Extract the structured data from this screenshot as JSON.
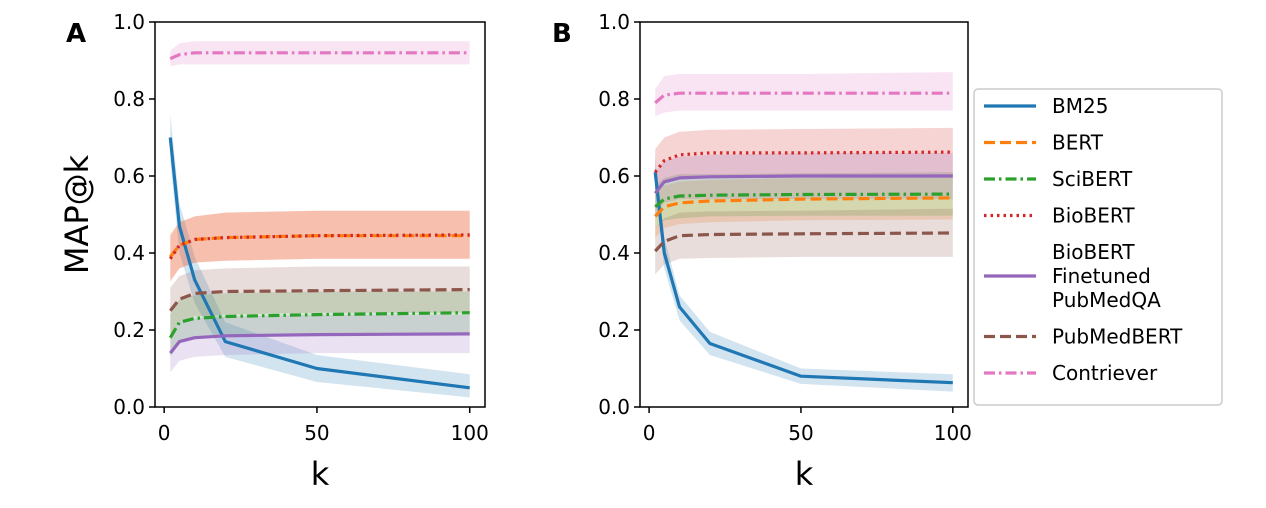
{
  "chart_data": [
    {
      "panel": "A",
      "type": "line",
      "title": "",
      "xlabel": "k",
      "ylabel": "MAP@k",
      "xlim": [
        -3,
        105
      ],
      "ylim": [
        0.0,
        1.0
      ],
      "x": [
        2,
        5,
        10,
        20,
        50,
        100
      ],
      "xticks": [
        "0",
        "50",
        "100"
      ],
      "yticks": [
        "0.0",
        "0.2",
        "0.4",
        "0.6",
        "0.8",
        "1.0"
      ],
      "series": [
        {
          "name": "BM25",
          "style": "solid",
          "color": "#1f77b4",
          "values": [
            0.7,
            0.47,
            0.33,
            0.17,
            0.1,
            0.05
          ],
          "lower": [
            0.64,
            0.4,
            0.27,
            0.13,
            0.065,
            0.025
          ],
          "upper": [
            0.76,
            0.53,
            0.39,
            0.22,
            0.135,
            0.085
          ]
        },
        {
          "name": "BERT",
          "style": "dashed",
          "color": "#ff7f0e",
          "values": [
            0.39,
            0.42,
            0.435,
            0.44,
            0.445,
            0.445
          ],
          "lower": [
            0.33,
            0.36,
            0.375,
            0.38,
            0.385,
            0.385
          ],
          "upper": [
            0.45,
            0.48,
            0.495,
            0.505,
            0.51,
            0.51
          ]
        },
        {
          "name": "SciBERT",
          "style": "dashdot",
          "color": "#2ca02c",
          "values": [
            0.18,
            0.22,
            0.23,
            0.235,
            0.24,
            0.245
          ],
          "lower": [
            0.13,
            0.17,
            0.18,
            0.185,
            0.19,
            0.19
          ],
          "upper": [
            0.24,
            0.28,
            0.29,
            0.295,
            0.3,
            0.3
          ]
        },
        {
          "name": "BioBERT",
          "style": "dotted",
          "color": "#d62728",
          "values": [
            0.385,
            0.42,
            0.435,
            0.44,
            0.445,
            0.447
          ],
          "lower": [
            0.325,
            0.36,
            0.375,
            0.38,
            0.385,
            0.385
          ],
          "upper": [
            0.445,
            0.48,
            0.495,
            0.505,
            0.51,
            0.51
          ]
        },
        {
          "name": "BioBERT Finetuned PubMedQA",
          "style": "solid",
          "color": "#9467bd",
          "values": [
            0.14,
            0.17,
            0.18,
            0.185,
            0.188,
            0.19
          ],
          "lower": [
            0.09,
            0.12,
            0.13,
            0.135,
            0.14,
            0.14
          ],
          "upper": [
            0.19,
            0.22,
            0.23,
            0.235,
            0.24,
            0.24
          ]
        },
        {
          "name": "PubMedBERT",
          "style": "dashed",
          "color": "#8c564b",
          "values": [
            0.25,
            0.28,
            0.295,
            0.3,
            0.302,
            0.305
          ],
          "lower": [
            0.19,
            0.22,
            0.235,
            0.24,
            0.245,
            0.245
          ],
          "upper": [
            0.31,
            0.34,
            0.355,
            0.36,
            0.365,
            0.365
          ]
        },
        {
          "name": "Contriever",
          "style": "dashdot",
          "color": "#e377c2",
          "values": [
            0.905,
            0.915,
            0.92,
            0.92,
            0.92,
            0.92
          ],
          "lower": [
            0.885,
            0.89,
            0.89,
            0.89,
            0.89,
            0.89
          ],
          "upper": [
            0.925,
            0.945,
            0.95,
            0.95,
            0.95,
            0.95
          ]
        }
      ]
    },
    {
      "panel": "B",
      "type": "line",
      "title": "",
      "xlabel": "k",
      "ylabel": "",
      "xlim": [
        -3,
        105
      ],
      "ylim": [
        0.0,
        1.0
      ],
      "x": [
        2,
        5,
        10,
        20,
        50,
        100
      ],
      "xticks": [
        "0",
        "50",
        "100"
      ],
      "yticks": [
        "0.0",
        "0.2",
        "0.4",
        "0.6",
        "0.8",
        "1.0"
      ],
      "series": [
        {
          "name": "BM25",
          "style": "solid",
          "color": "#1f77b4",
          "values": [
            0.61,
            0.4,
            0.26,
            0.165,
            0.08,
            0.063
          ],
          "lower": [
            0.57,
            0.36,
            0.225,
            0.135,
            0.06,
            0.04
          ],
          "upper": [
            0.65,
            0.44,
            0.29,
            0.195,
            0.1,
            0.085
          ]
        },
        {
          "name": "BERT",
          "style": "dashed",
          "color": "#ff7f0e",
          "values": [
            0.495,
            0.52,
            0.53,
            0.535,
            0.54,
            0.543
          ],
          "lower": [
            0.44,
            0.465,
            0.475,
            0.48,
            0.485,
            0.487
          ],
          "upper": [
            0.55,
            0.575,
            0.585,
            0.59,
            0.595,
            0.6
          ]
        },
        {
          "name": "SciBERT",
          "style": "dashdot",
          "color": "#2ca02c",
          "values": [
            0.52,
            0.54,
            0.548,
            0.55,
            0.552,
            0.553
          ],
          "lower": [
            0.465,
            0.485,
            0.49,
            0.495,
            0.497,
            0.497
          ],
          "upper": [
            0.575,
            0.595,
            0.605,
            0.605,
            0.607,
            0.61
          ]
        },
        {
          "name": "BioBERT",
          "style": "dotted",
          "color": "#d62728",
          "values": [
            0.61,
            0.64,
            0.655,
            0.66,
            0.66,
            0.662
          ],
          "lower": [
            0.55,
            0.585,
            0.595,
            0.6,
            0.6,
            0.6
          ],
          "upper": [
            0.67,
            0.7,
            0.715,
            0.72,
            0.722,
            0.725
          ]
        },
        {
          "name": "BioBERT Finetuned PubMedQA",
          "style": "solid",
          "color": "#9467bd",
          "values": [
            0.555,
            0.585,
            0.595,
            0.598,
            0.6,
            0.6
          ],
          "lower": [
            0.5,
            0.53,
            0.54,
            0.54,
            0.54,
            0.54
          ],
          "upper": [
            0.61,
            0.64,
            0.65,
            0.655,
            0.66,
            0.66
          ]
        },
        {
          "name": "PubMedBERT",
          "style": "dashed",
          "color": "#8c564b",
          "values": [
            0.405,
            0.43,
            0.445,
            0.448,
            0.45,
            0.452
          ],
          "lower": [
            0.345,
            0.37,
            0.385,
            0.387,
            0.39,
            0.39
          ],
          "upper": [
            0.465,
            0.49,
            0.505,
            0.508,
            0.51,
            0.515
          ]
        },
        {
          "name": "Contriever",
          "style": "dashdot",
          "color": "#e377c2",
          "values": [
            0.79,
            0.81,
            0.815,
            0.815,
            0.815,
            0.815
          ],
          "lower": [
            0.755,
            0.765,
            0.77,
            0.77,
            0.77,
            0.77
          ],
          "upper": [
            0.825,
            0.86,
            0.865,
            0.865,
            0.865,
            0.87
          ]
        }
      ]
    }
  ],
  "legend": {
    "placement": "right",
    "entries": [
      {
        "lines": [
          "BM25"
        ],
        "style": "solid",
        "color": "#1f77b4"
      },
      {
        "lines": [
          "BERT"
        ],
        "style": "dashed",
        "color": "#ff7f0e"
      },
      {
        "lines": [
          "SciBERT"
        ],
        "style": "dashdot",
        "color": "#2ca02c"
      },
      {
        "lines": [
          "BioBERT"
        ],
        "style": "dotted",
        "color": "#d62728"
      },
      {
        "lines": [
          "BioBERT",
          "Finetuned",
          "PubMedQA"
        ],
        "style": "solid",
        "color": "#9467bd"
      },
      {
        "lines": [
          "PubMedBERT"
        ],
        "style": "dashed",
        "color": "#8c564b"
      },
      {
        "lines": [
          "Contriever"
        ],
        "style": "dashdot",
        "color": "#e377c2"
      }
    ]
  }
}
